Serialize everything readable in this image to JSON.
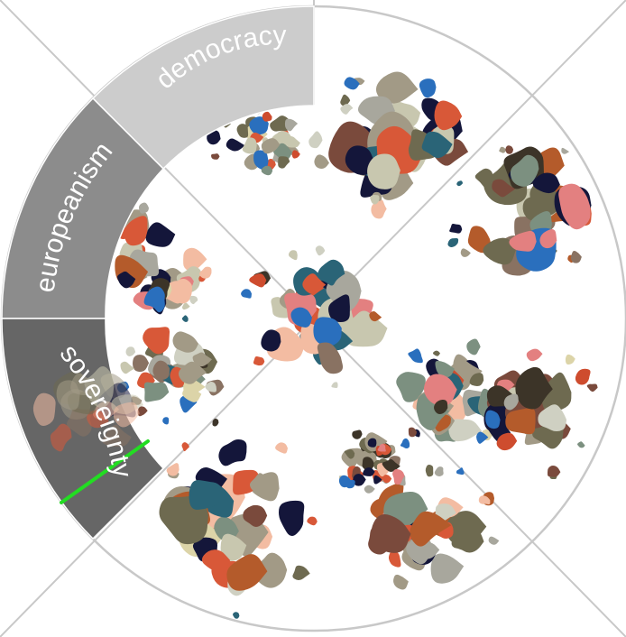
{
  "wheel": {
    "segments": [
      {
        "label": "democracy",
        "fill": "#cccccc"
      },
      {
        "label": "europeanism",
        "fill": "#8c8c8c"
      },
      {
        "label": "sovereignty",
        "fill": "#666666"
      }
    ],
    "guide_color": "#c8c8c8",
    "highlight_color": "#22dd22"
  },
  "palette": [
    "#14163a",
    "#6e6a50",
    "#a29a86",
    "#d85838",
    "#c8c7af",
    "#f3bca2",
    "#897262",
    "#2a6477",
    "#7c9080",
    "#ce4c2e",
    "#a8a79d",
    "#3c3428",
    "#b45b2b",
    "#2a6fbd",
    "#7a4a3c",
    "#dcd4a8",
    "#cfd0c2",
    "#e38080"
  ],
  "clusters": [
    {
      "id": "cluster-top",
      "dominant": [
        "#14163a",
        "#a29a86",
        "#c8c7af",
        "#f3bca2"
      ]
    },
    {
      "id": "cluster-top-left",
      "dominant": [
        "#6e6a50",
        "#a29a86",
        "#d85838",
        "#c8c7af"
      ]
    },
    {
      "id": "cluster-right-upper",
      "dominant": [
        "#897262",
        "#b45b2b",
        "#c8c7af",
        "#6e6a50"
      ]
    },
    {
      "id": "cluster-left-upper",
      "dominant": [
        "#a29a86",
        "#14163a",
        "#f3bca2",
        "#d85838"
      ]
    },
    {
      "id": "cluster-center",
      "dominant": [
        "#2a6477",
        "#c8c7af",
        "#d85838",
        "#a29a86"
      ]
    },
    {
      "id": "cluster-left-mid",
      "dominant": [
        "#6e6a50",
        "#897262",
        "#d85838",
        "#a29a86"
      ]
    },
    {
      "id": "cluster-right-mid",
      "dominant": [
        "#14163a",
        "#a29a86",
        "#f3bca2",
        "#7c9080"
      ]
    },
    {
      "id": "cluster-right-lower",
      "dominant": [
        "#14163a",
        "#a29a86",
        "#7a4a3c",
        "#2a6fbd"
      ]
    },
    {
      "id": "cluster-bottom-right",
      "dominant": [
        "#6e6a50",
        "#d85838",
        "#a29a86",
        "#b45b2b"
      ]
    },
    {
      "id": "cluster-bottom-left",
      "dominant": [
        "#14163a",
        "#a29a86",
        "#f3bca2",
        "#d85838"
      ]
    },
    {
      "id": "cluster-lower-center",
      "dominant": [
        "#3c3428",
        "#6e6a50",
        "#a29a86",
        "#d85838"
      ]
    }
  ]
}
